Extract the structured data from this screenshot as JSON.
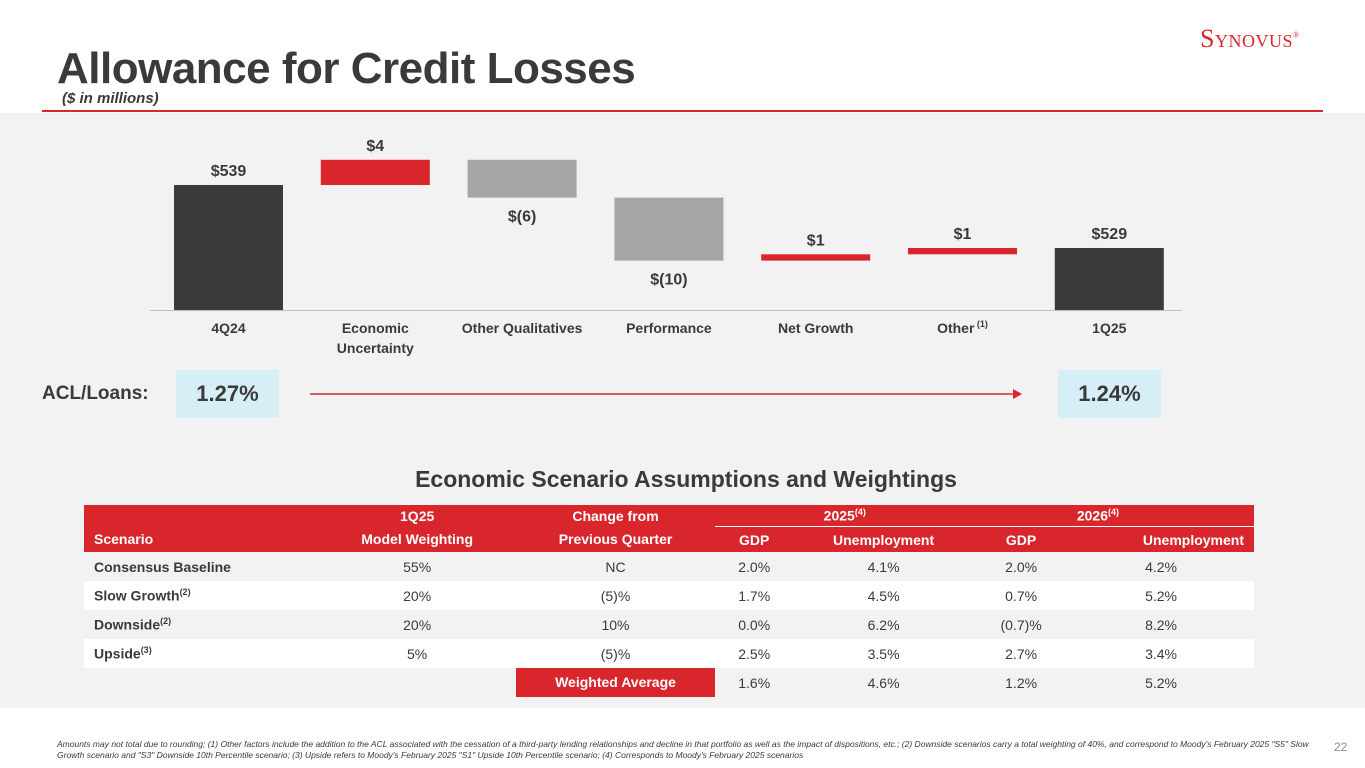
{
  "header": {
    "title": "Allowance for Credit Losses",
    "subtitle": "($ in millions)",
    "logo": "Synovus"
  },
  "chart_data": {
    "type": "bar",
    "subtype": "waterfall",
    "categories": [
      "4Q24",
      "Economic Uncertainty",
      "Other Qualitatives",
      "Performance",
      "Net Growth",
      "Other",
      "1Q25"
    ],
    "category_notes": [
      "",
      "",
      "",
      "",
      "",
      "(1)",
      ""
    ],
    "values": [
      539,
      4,
      -6,
      -10,
      1,
      1,
      529
    ],
    "labels": [
      "$539",
      "$4",
      "$(6)",
      "$(10)",
      "$1",
      "$1",
      "$529"
    ],
    "kinds": [
      "total",
      "increase",
      "decrease",
      "decrease",
      "increase",
      "increase",
      "total"
    ],
    "colors": {
      "total": "#3a3a3a",
      "increase": "#d9262d",
      "decrease": "#a6a6a6"
    },
    "title": "",
    "xlabel": "",
    "ylabel": ""
  },
  "acl": {
    "label": "ACL/Loans:",
    "start": "1.27%",
    "end": "1.24%"
  },
  "scenarios": {
    "title": "Economic Scenario Assumptions and Weightings",
    "header": {
      "scenario": "Scenario",
      "weighting_top": "1Q25",
      "weighting_bottom": "Model Weighting",
      "change_top": "Change from",
      "change_bottom": "Previous Quarter",
      "y2025": "2025",
      "y2025_note": "(4)",
      "y2026": "2026",
      "y2026_note": "(4)",
      "gdp": "GDP",
      "unemployment": "Unemployment"
    },
    "rows": [
      {
        "name": "Consensus Baseline",
        "note": "",
        "weight": "55%",
        "change": "NC",
        "gdp25": "2.0%",
        "un25": "4.1%",
        "gdp26": "2.0%",
        "un26": "4.2%"
      },
      {
        "name": "Slow Growth",
        "note": "(2)",
        "weight": "20%",
        "change": "(5)%",
        "gdp25": "1.7%",
        "un25": "4.5%",
        "gdp26": "0.7%",
        "un26": "5.2%"
      },
      {
        "name": "Downside",
        "note": "(2)",
        "weight": "20%",
        "change": "10%",
        "gdp25": "0.0%",
        "un25": "6.2%",
        "gdp26": "(0.7)%",
        "un26": "8.2%"
      },
      {
        "name": "Upside",
        "note": "(3)",
        "weight": "5%",
        "change": "(5)%",
        "gdp25": "2.5%",
        "un25": "3.5%",
        "gdp26": "2.7%",
        "un26": "3.4%"
      }
    ],
    "weighted": {
      "label": "Weighted Average",
      "gdp25": "1.6%",
      "un25": "4.6%",
      "gdp26": "1.2%",
      "un26": "5.2%"
    }
  },
  "footnote": "Amounts may not total due to rounding; (1) Other factors include the addition to the ACL associated with the cessation of a third-party lending relationships and decline in that portfolio  as well as the impact of dispositions, etc.; (2) Downside scenarios carry a total weighting of 40%, and correspond to Moody's February 2025 \"S5\" Slow Growth scenario and \"S3\" Downside 10th Percentile scenario; (3) Upside refers to Moody's February 2025 \"S1\" Upside 10th Percentile scenario; (4) Corresponds to Moody's February 2025 scenarios",
  "page_number": "22"
}
